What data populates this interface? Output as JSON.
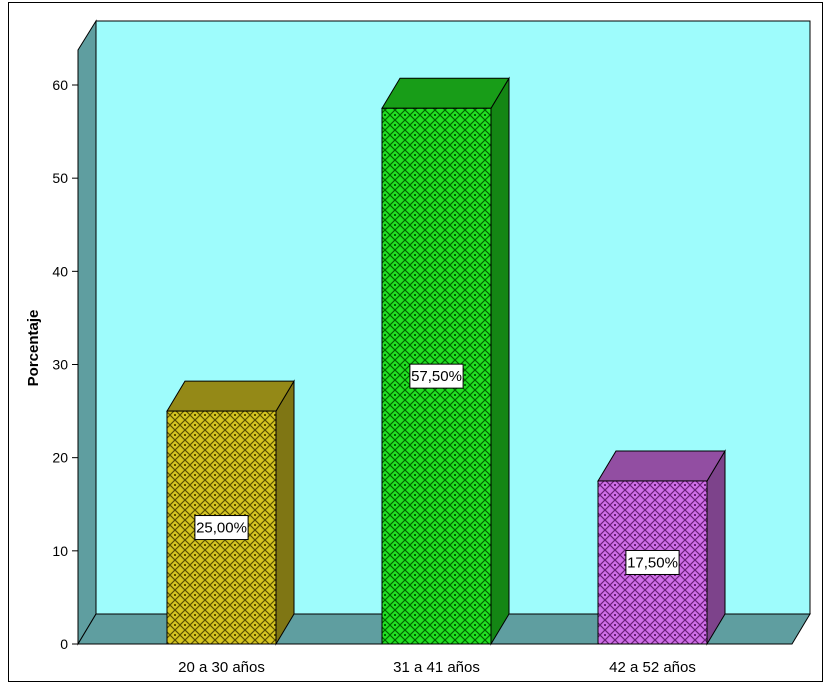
{
  "chart_data": {
    "type": "bar",
    "ylabel": "Porcentaje",
    "ylim": [
      0,
      60
    ],
    "yticks": [
      "0",
      "10",
      "20",
      "30",
      "40",
      "50",
      "60"
    ],
    "categories": [
      "20 a 30 años",
      "31 a 41 años",
      "42 a 52 años"
    ],
    "values": [
      25.0,
      57.5,
      17.5
    ],
    "data_labels": [
      "25,00%",
      "57,50%",
      "17,50%"
    ],
    "colors": [
      "#d4c421",
      "#22e022",
      "#d070e8"
    ],
    "background_color": "#9efcfc",
    "side_wall_color": "#5f9ea0",
    "grid": false,
    "style": "3d"
  }
}
